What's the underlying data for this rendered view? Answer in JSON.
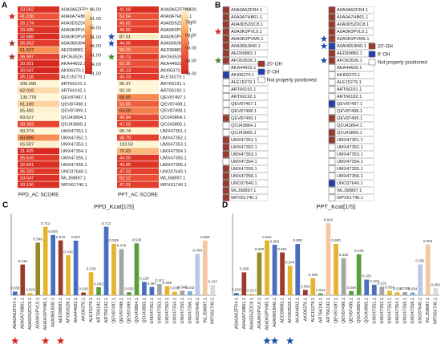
{
  "panels": {
    "A": {
      "letter": "A",
      "heatmaps": [
        {
          "title": "PPD_AC SCORE",
          "labels": [
            "A0A0A6ZFR4.1",
            "A0A0A7HB61.1",
            "A0A0D5ZDC8.1",
            "A0A0K0PVL0.1",
            "A0A0K0PVM5.1",
            "A0A068J840.1",
            "AED99883.1",
            "AFO63526.1",
            "AKA44602.1",
            "AKI06370.1",
            "ALE15279.1",
            "ART66191.1",
            "ART66192.1",
            "QEV87497.1",
            "QEV87498.1",
            "QEV87499.1",
            "QOJ43864.1",
            "QOJ43865.1",
            "UMX47351.1",
            "UMX47352.1",
            "UMX47353.1",
            "UMX47354.1",
            "UMX47355.1",
            "UMX47356.1",
            "UNO37640.1",
            "WLJ58897.1",
            "WPX61740.1"
          ],
          "values": [
            33.562,
            41.236,
            35.174,
            33.485,
            32.588,
            35.952,
            51.627,
            36.997,
            30.921,
            30.547,
            35.118,
            206.99,
            62.018,
            135.778,
            61.169,
            65.482,
            69.617,
            38.363,
            90.274,
            50.899,
            65.507,
            31.425,
            35.616,
            32.841,
            35.322,
            33.647,
            33.156
          ],
          "value_labels": [
            "33.562",
            "41.236",
            "35.174",
            "33.485",
            "32.588",
            "35.952",
            "51.627",
            "36.997",
            "30.921",
            "30.547",
            "35.118",
            "206.990",
            "62.018",
            "135.778",
            "61.169",
            "65.482",
            "69.617",
            "38.363",
            "90.274",
            "50.899",
            "65.507",
            "31.425",
            "35.616",
            "32.841",
            "35.322",
            "33.647",
            "33.156"
          ],
          "stars": [
            null,
            "#d62728",
            null,
            null,
            null,
            "#9b3b2e",
            null,
            "#9b3b2e",
            null,
            null,
            null,
            null,
            null,
            null,
            null,
            null,
            null,
            null,
            null,
            null,
            null,
            null,
            null,
            null,
            null,
            null,
            null
          ],
          "scale": {
            "lim": [
              31,
              66
            ],
            "colors": [
              "#d7261e",
              "#ef5a3c",
              "#f9a35a",
              "#fff6d5"
            ],
            "ticks": [
              {
                "value": 66,
                "label": "66.00"
              },
              {
                "value": 61,
                "label": "61.00"
              },
              {
                "value": 56,
                "label": "56.00"
              },
              {
                "value": 51,
                "label": "51.00"
              },
              {
                "value": 46,
                "label": "46.00"
              },
              {
                "value": 41,
                "label": "41.00"
              },
              {
                "value": 36,
                "label": "36.00"
              },
              {
                "value": 31,
                "label": "31.00"
              }
            ]
          }
        },
        {
          "title": "PPT_AC SCORE",
          "labels": [
            "A0A0A6ZFR4.1",
            "A0A0A7HB61.1",
            "A0A0D5ZDC8.1",
            "A0A0K0PVL0.1",
            "A0A0K0PVM5.1",
            "A0A068J840.1",
            "AED99883.1",
            "AFO63526.1",
            "AKA44602.1",
            "AKI06370.1",
            "ALE15279.1",
            "ART66191.1",
            "ART66192.1",
            "QEV87497.1",
            "QEV87498.1",
            "QEV87499.1",
            "QOJ43864.1",
            "QOJ43865.1",
            "UMX47351.1",
            "UMX47352.1",
            "UMX47353.1",
            "UMX47354.1",
            "UMX47355.1",
            "UMX47356.1",
            "UNO37640.1",
            "WLJ58897.1",
            "WPX61740.1"
          ],
          "values": [
            41.68,
            52.64,
            49.6,
            46.8,
            87.01,
            44,
            59.1,
            46.73,
            52.35,
            45.13,
            45.23,
            96.37,
            93.18,
            66.55,
            56.85,
            64.68,
            49.94,
            47.03,
            99.74,
            48.79,
            103.53,
            76.63,
            44.09,
            43.95,
            47.23,
            52.12,
            47.01
          ],
          "value_labels": [
            "41.68",
            "52.64",
            "49.60",
            "46.80",
            "87.01",
            "44.00",
            "59.10",
            "46.73",
            "52.35",
            "45.13",
            "45.23",
            "96.37",
            "93.18",
            "66.55",
            "56.85",
            "64.68",
            "49.94",
            "47.03",
            "99.74",
            "48.79",
            "103.53",
            "76.63",
            "44.09",
            "43.95",
            "47.23",
            "52.12",
            "47.01"
          ],
          "stars": [
            null,
            null,
            null,
            null,
            "#1f4fa8",
            "#1f4fa8",
            null,
            "#4a8a2a",
            null,
            null,
            null,
            null,
            null,
            null,
            null,
            null,
            null,
            null,
            null,
            null,
            null,
            null,
            null,
            null,
            null,
            null,
            null
          ],
          "scale": {
            "lim": [
              39,
              89
            ],
            "colors": [
              "#d7261e",
              "#ef5a3c",
              "#f9a35a",
              "#fff6d5"
            ],
            "ticks": [
              {
                "value": 89,
                "label": "89.00"
              },
              {
                "value": 79,
                "label": "79.00"
              },
              {
                "value": 69,
                "label": "69.00"
              },
              {
                "value": 59,
                "label": "59.00"
              },
              {
                "value": 49,
                "label": "49.00"
              },
              {
                "value": 39,
                "label": "39.00"
              }
            ]
          }
        }
      ]
    },
    "B": {
      "letter": "B",
      "lists": [
        {
          "labels": [
            "A0A0A6ZFR4.1",
            "A0A0A7HB61.1",
            "A0A0D5ZDC8.1",
            "A0A0K0PVL0.1",
            "A0A0K0PVM5.1",
            "A0A068J840.1",
            "AED99883.1",
            "AFO63526.1",
            "AKA44602.1",
            "AKI06370.1",
            "ALE15279.1",
            "ART66191.1",
            "ART66192.1",
            "QEV87497.1",
            "QEV87498.1",
            "QEV87499.1",
            "QOJ43864.1",
            "QOJ43865.1",
            "UMX47351.1",
            "UMX47352.1",
            "UMX47353.1",
            "UMX47354.1",
            "UMX47355.1",
            "UMX47356.1",
            "UNO37640.1",
            "WLJ58897.1",
            "WPX61740.1"
          ],
          "sites": [
            "20'-OH",
            "20'-OH",
            "20'-OH",
            "20'-OH",
            "20'-OH",
            "20'-OH",
            "20'-OH",
            "20'-OH",
            "Not properly positioned",
            "3'-OH",
            "Not properly positioned",
            "Not properly positioned",
            "Not properly positioned",
            "Not properly positioned",
            "Not properly positioned",
            "20'-OH",
            "Not properly positioned",
            "Not properly positioned",
            "20'-OH",
            "20'-OH",
            "20'-OH",
            "Not properly positioned",
            "20'-OH",
            "20'-OH",
            "20'-OH",
            "20'-OH",
            "20'-OH"
          ],
          "stars": [
            null,
            null,
            null,
            "#d62728",
            null,
            null,
            null,
            "#4a8a2a",
            null,
            null,
            null,
            null,
            null,
            null,
            null,
            null,
            null,
            null,
            null,
            null,
            null,
            null,
            null,
            null,
            null,
            null,
            null
          ],
          "legend": [
            {
              "name": "20'-OH",
              "color": "#9b3b2e"
            },
            {
              "name": "3'-OH",
              "color": "#2340a8"
            },
            {
              "name": "Not properly positioned",
              "color": "#ffffff"
            }
          ]
        },
        {
          "labels": [
            "A0A0A6ZFR4.1",
            "A0A0A7HB61.1",
            "A0A0D5ZDC8.1",
            "A0A0K0PVL0.1",
            "A0A0K0PVM5.1",
            "A0A068J840.1",
            "AED99883.1",
            "AFO63526.1",
            "AKA44602.1",
            "AKI06370.1",
            "ALE15279.1",
            "ART66191.1",
            "ART66192.1",
            "QEV87497.1",
            "QEV87498.1",
            "QEV87499.1",
            "QOJ43864.1",
            "QOJ43865.1",
            "UMX47351.1",
            "UMX47352.1",
            "UMX47353.1",
            "UMX47354.1",
            "UMX47355.1",
            "UMX47356.1",
            "UNO37640.1",
            "WLJ58897.1",
            "WPX61740.1"
          ],
          "sites": [
            "20'-OH",
            "20'-OH",
            "20'-OH",
            "20'-OH",
            "20'-OH",
            "6'-OH",
            "20'-OH",
            "20'-OH",
            "Not properly positioned",
            "Not properly positioned",
            "Not properly positioned",
            "Not properly positioned",
            "Not properly positioned",
            "6'-OH",
            "Not properly positioned",
            "20'-OH",
            "Not properly positioned",
            "20'-OH",
            "20'-OH",
            "Not properly positioned",
            "Not properly positioned",
            "Not properly positioned",
            "Not properly positioned",
            "Not properly positioned",
            "6'-OH",
            "Not properly positioned",
            "Not properly positioned"
          ],
          "stars": [
            null,
            null,
            null,
            null,
            "#1f4fa8",
            "#1f4fa8",
            null,
            "#1f4fa8",
            null,
            null,
            null,
            null,
            null,
            null,
            null,
            null,
            null,
            null,
            null,
            null,
            null,
            null,
            null,
            null,
            null,
            null,
            null
          ],
          "legend": [
            {
              "name": "20'-OH",
              "color": "#9b3b2e"
            },
            {
              "name": "6'-OH",
              "color": "#2340a8"
            },
            {
              "name": "Not properly positioned",
              "color": "#ffffff"
            }
          ]
        }
      ]
    }
  },
  "chart_data": [
    {
      "type": "bar",
      "panel_label": "C",
      "title": "PPD_Kcat[1/S]",
      "categories": [
        "A0A0A6ZFR4.1",
        "A0A0A7HB61.1",
        "A0A0D5ZDC8.1",
        "A0A0K0PVL0.1",
        "A0A0K0PVM5.1",
        "A0A068J840.1",
        "AED99883.1",
        "AFO63526.1",
        "AKA44602.1",
        "AKI06370.1",
        "ALE15279.1",
        "ART66191.1",
        "ART66192.1",
        "QEV87497.1",
        "QEV87498.1",
        "QEV87499.1",
        "QOJ43864.1",
        "QOJ43865.1",
        "UMX47351.1",
        "UMX47352.1",
        "UMX47353.1",
        "UMX47354.1",
        "UMX47355.1",
        "UMX47356.1",
        "UNO37640.1",
        "WLJ58897.1",
        "WPX61740.1"
      ],
      "values": [
        0.038,
        0.319,
        0.023,
        0.546,
        0.712,
        0.626,
        0.57,
        0.416,
        0.567,
        0.029,
        0.239,
        0.083,
        0.712,
        0.535,
        0.479,
        0.032,
        0.539,
        0.138,
        0.087,
        0.117,
        0.095,
        0.038,
        0.048,
        0.042,
        0.43,
        0.568,
        0.107
      ],
      "value_labels": [
        "0.038",
        "0.319",
        "0.023",
        "0.546",
        "0.712",
        "0.626",
        "0.570",
        "0.416",
        "0.567",
        "0.029",
        "0.239",
        "0.083",
        "0.712",
        "0.535",
        "0.479",
        "0.032",
        "0.539",
        "0.138",
        "0.087",
        "0.117",
        "0.095",
        "0.038",
        "0.048",
        "0.042",
        "0.430",
        "0.568",
        "0.107"
      ],
      "colors": [
        "#4a6fbf",
        "#9b3b2e",
        "#e3b52c",
        "#9b8a2c",
        "#e3b52c",
        "#4a6fbf",
        "#9b3b2e",
        "#e3b52c",
        "#4a6fbf",
        "#9b3b2e",
        "#e3b52c",
        "#5a9e3a",
        "#4a6fbf",
        "#e3b52c",
        "#a5a5a5",
        "#5a9e3a",
        "#5a9e3a",
        "#4a6fbf",
        "#4a6fbf",
        "#a5a5a5",
        "#e3b52c",
        "#e3b52c",
        "#a5a5a5",
        "#7cafdd",
        "#b8c8e8",
        "#f4c7a1",
        "#d9d9d9"
      ],
      "ylim": [
        0,
        0.8
      ],
      "starred": [
        true,
        false,
        false,
        false,
        true,
        false,
        true,
        false,
        false,
        false,
        false,
        false,
        false,
        false,
        false,
        false,
        false,
        false,
        false,
        false,
        false,
        false,
        false,
        false,
        false,
        false,
        false
      ],
      "star_color": "#d62728"
    },
    {
      "type": "bar",
      "panel_label": "D",
      "title": "PPT_Kcat[1/S]",
      "categories": [
        "A0A0A6ZFR4.1",
        "A0A0A7HB61.1",
        "A0A0D5ZDC8.1",
        "A0A0K0PVL0.1",
        "A0A0K0PVM5.1",
        "A0A068J840.1",
        "AED99883.1",
        "AFO63526.1",
        "AKA44602.1",
        "AKI06370.1",
        "ALE15279.1",
        "ART66191.1",
        "ART66192.1",
        "QEV87497.1",
        "QEV87498.1",
        "QEV87499.1",
        "QOJ43864.1",
        "QOJ43865.1",
        "UMX47351.1",
        "UMX47352.1",
        "UMX47353.1",
        "UMX47354.1",
        "UMX47355.1",
        "UMX47356.1",
        "UNO37640.1",
        "WLJ58897.1",
        "WPX61740.1"
      ],
      "values": [
        0.026,
        0.268,
        0.017,
        0.5,
        0.641,
        0.59,
        0.501,
        0.344,
        0.6,
        0.063,
        0.199,
        0.021,
        0.842,
        0.6,
        0.432,
        0.049,
        0.478,
        0.183,
        0.123,
        0.101,
        0.054,
        0.034,
        0.038,
        0.034,
        0.361,
        0.594,
        0.083
      ],
      "value_labels": [
        "0.026",
        "0.268",
        "0.017",
        "0.500",
        "0.641",
        "0.590",
        "0.501",
        "0.344",
        "0.600",
        "0.063",
        "0.199",
        "0.021",
        "0.842",
        "0.600",
        "0.432",
        "0.049",
        "0.478",
        "0.183",
        "0.123",
        "0.101",
        "0.054",
        "0.034",
        "0.038",
        "0.034",
        "0.361",
        "0.594",
        "0.083"
      ],
      "colors": [
        "#4a6fbf",
        "#9b3b2e",
        "#e3b52c",
        "#9b8a2c",
        "#e3b52c",
        "#4a6fbf",
        "#9b3b2e",
        "#e3b52c",
        "#4a6fbf",
        "#9b3b2e",
        "#e3b52c",
        "#5a9e3a",
        "#f4c7a1",
        "#e3b52c",
        "#a5a5a5",
        "#5a9e3a",
        "#5a9e3a",
        "#4a6fbf",
        "#4a6fbf",
        "#a5a5a5",
        "#e3b52c",
        "#e3b52c",
        "#a5a5a5",
        "#7cafdd",
        "#b8c8e8",
        "#f4c7a1",
        "#d9d9d9"
      ],
      "ylim": [
        0,
        0.9
      ],
      "starred": [
        false,
        false,
        false,
        false,
        true,
        true,
        false,
        true,
        false,
        false,
        false,
        false,
        false,
        false,
        false,
        false,
        false,
        false,
        false,
        false,
        false,
        false,
        false,
        false,
        false,
        false,
        false
      ],
      "star_color": "#1f4fa8"
    }
  ]
}
